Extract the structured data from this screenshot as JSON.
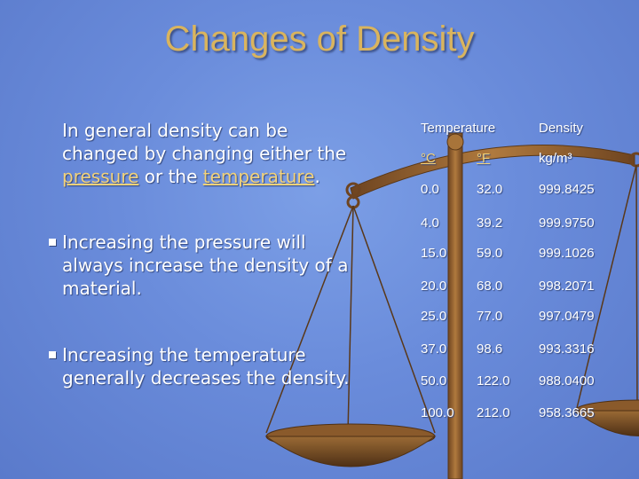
{
  "slide": {
    "title": "Changes of Density",
    "paragraph1": {
      "line1": "In general density can be",
      "line2": "changed by changing either the",
      "link_pressure": "pressure",
      "connector": " or the ",
      "link_temperature": "temperature",
      "end": "."
    },
    "bullets": [
      {
        "lines": [
          "Increasing the pressure will",
          "always increase the density of a",
          "material."
        ]
      },
      {
        "lines": [
          "Increasing the temperature",
          "generally decreases the density."
        ]
      }
    ]
  },
  "table": {
    "headers": [
      "Temperature",
      "Density"
    ],
    "units": [
      "°C",
      "°F",
      "kg/m³"
    ],
    "rows": [
      [
        "0.0",
        "32.0",
        "999.8425"
      ],
      [
        "4.0",
        "39.2",
        "999.9750"
      ],
      [
        "15.0",
        "59.0",
        "999.1026"
      ],
      [
        "20.0",
        "68.0",
        "998.2071"
      ],
      [
        "25.0",
        "77.0",
        "997.0479"
      ],
      [
        "37.0",
        "98.6",
        "993.3316"
      ],
      [
        "50.0",
        "122.0",
        "988.0400"
      ],
      [
        "100.0",
        "212.0",
        "958.3665"
      ]
    ]
  },
  "colors": {
    "background": "#6a8cdb",
    "title": "#d9b45e",
    "text": "#ffffff",
    "link": "#f2d27a",
    "scale_wood": "#8a5a2b"
  },
  "icons": {
    "bullet": "square-bullet",
    "scale": "balance-scale-illustration"
  }
}
